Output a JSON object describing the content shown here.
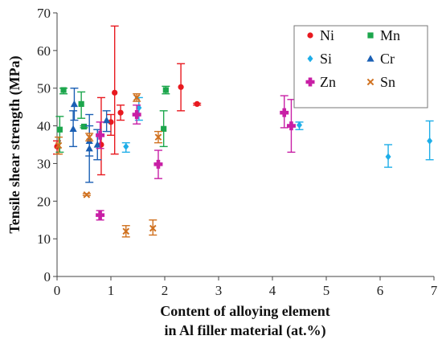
{
  "chart_data": {
    "type": "scatter",
    "title": "",
    "xlabel_line1": "Content of alloying element",
    "xlabel_line2": "in Al filler material (at.%)",
    "ylabel": "Tensile shear strength (MPa)",
    "xlim": [
      0,
      7
    ],
    "ylim": [
      0,
      70
    ],
    "x_ticks": [
      0,
      1,
      2,
      3,
      4,
      5,
      6,
      7
    ],
    "y_ticks": [
      0,
      10,
      20,
      30,
      40,
      50,
      60,
      70
    ],
    "grid": false,
    "legend_position": "top-right",
    "legend_columns": 2,
    "series": [
      {
        "name": "Ni",
        "marker": "circle",
        "color": "#e8191f",
        "points": [
          {
            "x": 0.0,
            "y": 34.5,
            "lo": 32.5,
            "hi": 36.0
          },
          {
            "x": 0.82,
            "y": 35.0,
            "lo": 27.0,
            "hi": 47.5
          },
          {
            "x": 1.0,
            "y": 41.0,
            "lo": 37.5,
            "hi": 43.0
          },
          {
            "x": 1.07,
            "y": 48.8,
            "lo": 32.5,
            "hi": 66.5
          },
          {
            "x": 1.18,
            "y": 43.5,
            "lo": 41.5,
            "hi": 45.5
          },
          {
            "x": 2.3,
            "y": 50.3,
            "lo": 44.0,
            "hi": 56.5
          },
          {
            "x": 2.6,
            "y": 45.8,
            "lo": 45.5,
            "hi": 46.0
          }
        ]
      },
      {
        "name": "Mn",
        "marker": "square",
        "color": "#1ca64c",
        "points": [
          {
            "x": 0.05,
            "y": 39.0,
            "lo": 33.0,
            "hi": 42.5
          },
          {
            "x": 0.12,
            "y": 49.5,
            "lo": 48.5,
            "hi": 50.0
          },
          {
            "x": 0.45,
            "y": 45.8,
            "lo": 42.0,
            "hi": 49.0
          },
          {
            "x": 0.5,
            "y": 39.8,
            "lo": 39.5,
            "hi": 40.0
          },
          {
            "x": 1.98,
            "y": 39.2,
            "lo": 34.5,
            "hi": 44.0
          },
          {
            "x": 2.02,
            "y": 49.5,
            "lo": 48.5,
            "hi": 50.5
          }
        ]
      },
      {
        "name": "Si",
        "marker": "diamond",
        "color": "#1eaee8",
        "points": [
          {
            "x": 1.28,
            "y": 34.5,
            "lo": 33.0,
            "hi": 35.5
          },
          {
            "x": 1.52,
            "y": 44.8,
            "lo": 41.5,
            "hi": 47.5
          },
          {
            "x": 4.5,
            "y": 40.2,
            "lo": 39.0,
            "hi": 41.0
          },
          {
            "x": 6.15,
            "y": 31.8,
            "lo": 29.0,
            "hi": 35.0
          },
          {
            "x": 6.92,
            "y": 36.0,
            "lo": 31.0,
            "hi": 41.3
          }
        ]
      },
      {
        "name": "Cr",
        "marker": "triangle",
        "color": "#1a5fb4",
        "points": [
          {
            "x": 0.3,
            "y": 39.2,
            "lo": 34.5,
            "hi": 44.0
          },
          {
            "x": 0.32,
            "y": 45.8,
            "lo": 41.5,
            "hi": 50.0
          },
          {
            "x": 0.6,
            "y": 34.0,
            "lo": 25.0,
            "hi": 43.0
          },
          {
            "x": 0.6,
            "y": 36.0,
            "lo": 32.0,
            "hi": 40.0
          },
          {
            "x": 0.75,
            "y": 35.0,
            "lo": 31.0,
            "hi": 39.0
          },
          {
            "x": 0.92,
            "y": 41.5,
            "lo": 38.5,
            "hi": 44.0
          }
        ]
      },
      {
        "name": "Zn",
        "marker": "plus",
        "color": "#c81fa5",
        "points": [
          {
            "x": 0.8,
            "y": 37.5,
            "lo": 34.0,
            "hi": 41.0
          },
          {
            "x": 0.8,
            "y": 16.3,
            "lo": 15.0,
            "hi": 17.5
          },
          {
            "x": 1.48,
            "y": 43.0,
            "lo": 40.5,
            "hi": 45.5
          },
          {
            "x": 1.88,
            "y": 29.8,
            "lo": 26.0,
            "hi": 33.5
          },
          {
            "x": 4.22,
            "y": 43.5,
            "lo": 39.5,
            "hi": 48.0
          },
          {
            "x": 4.35,
            "y": 40.0,
            "lo": 33.0,
            "hi": 47.0
          }
        ]
      },
      {
        "name": "Sn",
        "marker": "x",
        "color": "#d0711f",
        "points": [
          {
            "x": 0.03,
            "y": 34.8,
            "lo": 32.5,
            "hi": 37.0
          },
          {
            "x": 0.55,
            "y": 21.7,
            "lo": 21.5,
            "hi": 22.0
          },
          {
            "x": 0.6,
            "y": 37.0,
            "lo": 36.0,
            "hi": 38.0
          },
          {
            "x": 1.28,
            "y": 12.0,
            "lo": 10.5,
            "hi": 13.5
          },
          {
            "x": 1.48,
            "y": 47.5,
            "lo": 46.5,
            "hi": 48.5
          },
          {
            "x": 1.78,
            "y": 12.8,
            "lo": 11.0,
            "hi": 15.0
          },
          {
            "x": 1.88,
            "y": 37.0,
            "lo": 35.5,
            "hi": 38.5
          }
        ]
      }
    ]
  }
}
